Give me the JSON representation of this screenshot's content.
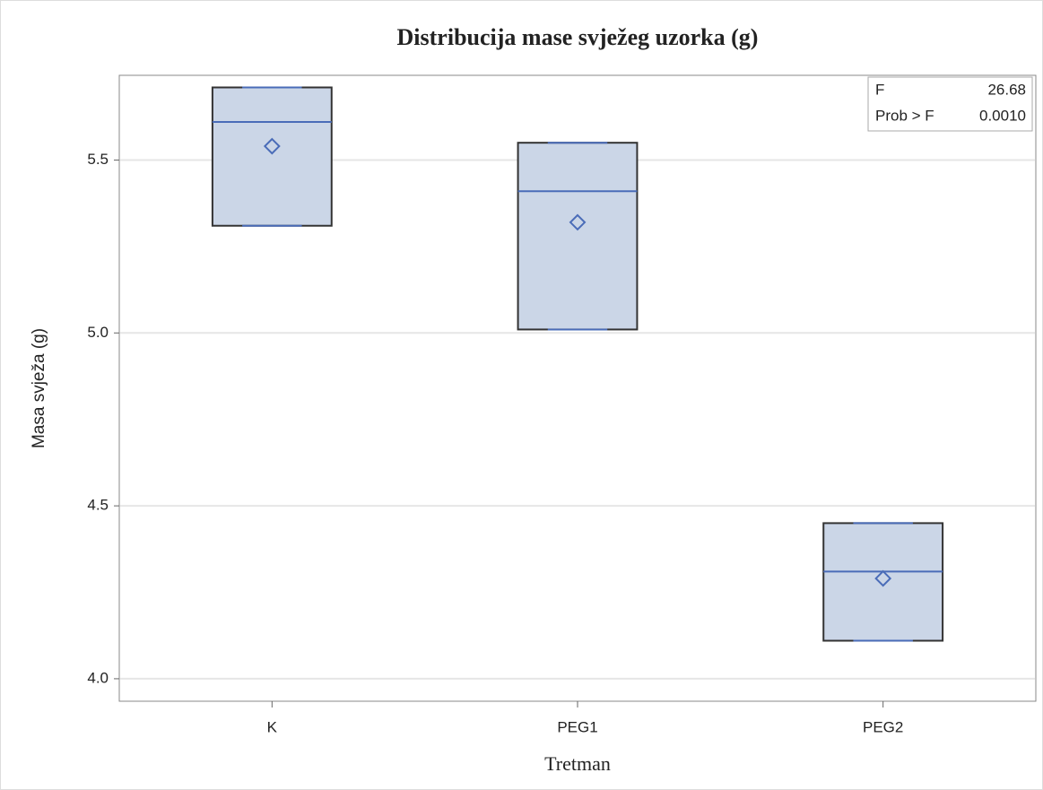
{
  "chart_data": {
    "type": "box",
    "title": "Distribucija mase svježeg uzorka (g)",
    "x_label": "Tretman",
    "y_label": "Masa svježa (g)",
    "categories": [
      "K",
      "PEG1",
      "PEG2"
    ],
    "min": [
      5.31,
      5.01,
      4.11
    ],
    "q1": [
      5.31,
      5.01,
      4.11
    ],
    "median": [
      5.61,
      5.41,
      4.31
    ],
    "q3": [
      5.71,
      5.55,
      4.45
    ],
    "max": [
      5.71,
      5.55,
      4.45
    ],
    "mean": [
      5.54,
      5.32,
      4.29
    ],
    "color": "#4a6cb8",
    "fill": "#cbd6e7",
    "ylim": [
      3.935,
      5.745
    ],
    "yticks": [
      {
        "value": 4,
        "label": "4.0"
      },
      4.5,
      {
        "value": 5,
        "label": "5.0"
      },
      5.5
    ],
    "grid": true,
    "inset": {
      "rows": [
        [
          "F",
          "26.68"
        ],
        [
          "Prob > F",
          "0.0010"
        ]
      ]
    }
  }
}
